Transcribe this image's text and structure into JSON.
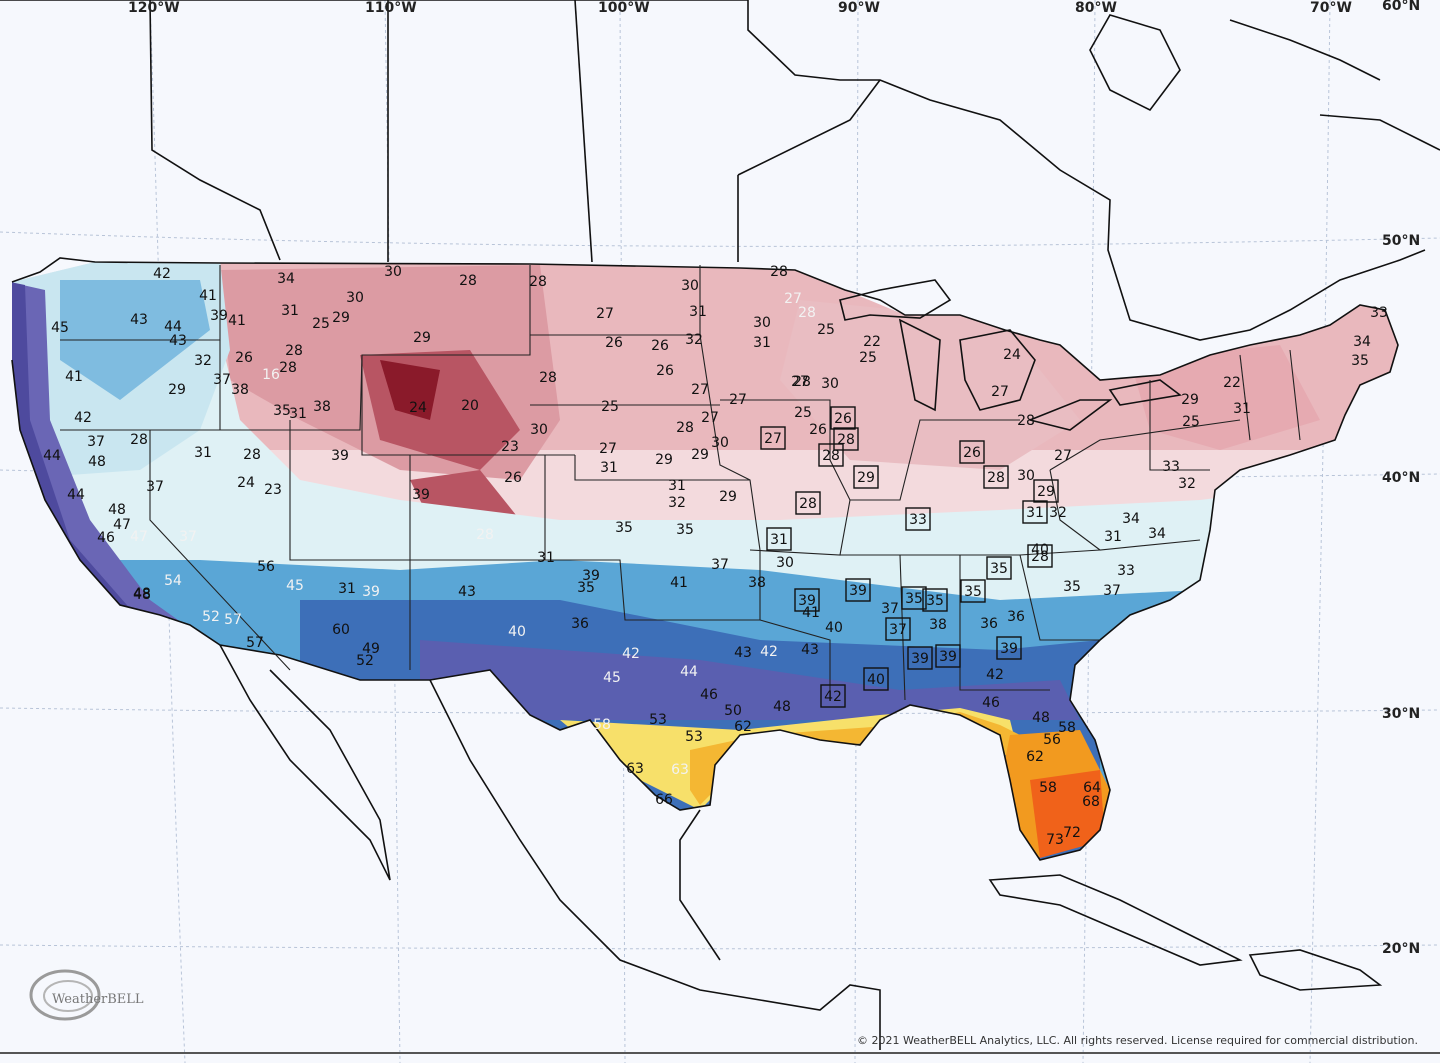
{
  "map": {
    "lon_labels": [
      "120°W",
      "110°W",
      "100°W",
      "90°W",
      "80°W",
      "70°W",
      "60°N"
    ],
    "lat_labels": [
      "50°N",
      "40°N",
      "30°N",
      "20°N"
    ],
    "copyright": "© 2021 WeatherBELL Analytics, LLC. All rights reserved. License required for commercial distribution.",
    "logo": "WeatherBELL",
    "colors": {
      "cold_deep": "#8a1a2a",
      "cold": "#d98a93",
      "cool": "#f2cfd2",
      "mild": "#dff1f5",
      "chill": "#5aa6d6",
      "warm_blue": "#3d6fb8",
      "purple": "#6a66b5",
      "yellow": "#f7e06a",
      "orange": "#f29a1f",
      "red_orange": "#f0621a"
    },
    "values": [
      {
        "v": "42"
      },
      {
        "v": "34"
      },
      {
        "v": "30"
      },
      {
        "v": "28"
      },
      {
        "v": "28"
      },
      {
        "v": "30"
      },
      {
        "v": "28"
      },
      {
        "v": "41"
      },
      {
        "v": "30"
      },
      {
        "v": "27"
      },
      {
        "v": "31"
      },
      {
        "v": "30"
      },
      {
        "v": "27"
      },
      {
        "v": "28"
      },
      {
        "v": "43"
      },
      {
        "v": "44"
      },
      {
        "v": "39"
      },
      {
        "v": "41"
      },
      {
        "v": "31"
      },
      {
        "v": "25"
      },
      {
        "v": "29"
      },
      {
        "v": "26"
      },
      {
        "v": "26"
      },
      {
        "v": "32"
      },
      {
        "v": "31"
      },
      {
        "v": "45"
      },
      {
        "v": "43"
      },
      {
        "v": "32"
      },
      {
        "v": "26"
      },
      {
        "v": "28"
      },
      {
        "v": "29"
      },
      {
        "v": "26"
      },
      {
        "v": "27"
      },
      {
        "v": "25"
      },
      {
        "v": "22"
      },
      {
        "v": "25"
      },
      {
        "v": "41"
      },
      {
        "v": "29"
      },
      {
        "v": "37"
      },
      {
        "v": "38"
      },
      {
        "v": "16"
      },
      {
        "v": "28"
      },
      {
        "v": "24"
      },
      {
        "v": "20"
      },
      {
        "v": "28"
      },
      {
        "v": "25"
      },
      {
        "v": "27"
      },
      {
        "v": "42"
      },
      {
        "v": "35"
      },
      {
        "v": "31"
      },
      {
        "v": "38"
      },
      {
        "v": "30"
      },
      {
        "v": "27"
      },
      {
        "v": "28"
      },
      {
        "v": "30"
      },
      {
        "v": "25"
      },
      {
        "v": "26"
      },
      {
        "v": "27"
      },
      {
        "v": "44"
      },
      {
        "v": "37"
      },
      {
        "v": "28"
      },
      {
        "v": "31"
      },
      {
        "v": "28"
      },
      {
        "v": "39"
      },
      {
        "v": "23"
      },
      {
        "v": "27"
      },
      {
        "v": "29"
      },
      {
        "v": "28"
      },
      {
        "v": "29"
      },
      {
        "v": "48"
      },
      {
        "v": "37"
      },
      {
        "v": "24"
      },
      {
        "v": "23"
      },
      {
        "v": "39"
      },
      {
        "v": "26"
      },
      {
        "v": "31"
      },
      {
        "v": "31"
      },
      {
        "v": "32"
      },
      {
        "v": "29"
      },
      {
        "v": "30"
      },
      {
        "v": "44"
      },
      {
        "v": "48"
      },
      {
        "v": "47"
      },
      {
        "v": "46"
      },
      {
        "v": "47"
      },
      {
        "v": "37"
      },
      {
        "v": "28"
      },
      {
        "v": "35"
      },
      {
        "v": "35"
      },
      {
        "v": "31"
      },
      {
        "v": "30"
      },
      {
        "v": "48"
      },
      {
        "v": "54"
      },
      {
        "v": "56"
      },
      {
        "v": "45"
      },
      {
        "v": "31"
      },
      {
        "v": "39"
      },
      {
        "v": "43"
      },
      {
        "v": "39"
      },
      {
        "v": "35"
      },
      {
        "v": "41"
      },
      {
        "v": "38"
      },
      {
        "v": "37"
      },
      {
        "v": "48"
      },
      {
        "v": "52"
      },
      {
        "v": "57"
      },
      {
        "v": "57"
      },
      {
        "v": "60"
      },
      {
        "v": "49"
      },
      {
        "v": "52"
      },
      {
        "v": "40"
      },
      {
        "v": "36"
      },
      {
        "v": "42"
      },
      {
        "v": "43"
      },
      {
        "v": "42"
      },
      {
        "v": "45"
      },
      {
        "v": "44"
      },
      {
        "v": "46"
      },
      {
        "v": "50"
      },
      {
        "v": "53"
      },
      {
        "v": "58"
      },
      {
        "v": "63"
      },
      {
        "v": "66"
      },
      {
        "v": "63"
      },
      {
        "v": "53"
      },
      {
        "v": "62"
      },
      {
        "v": "48"
      },
      {
        "v": "43"
      },
      {
        "v": "41"
      },
      {
        "v": "40"
      },
      {
        "v": "37"
      },
      {
        "v": "38"
      },
      {
        "v": "36"
      },
      {
        "v": "36"
      },
      {
        "v": "42"
      },
      {
        "v": "46"
      },
      {
        "v": "48"
      },
      {
        "v": "58"
      },
      {
        "v": "64"
      },
      {
        "v": "68"
      },
      {
        "v": "72"
      },
      {
        "v": "73"
      },
      {
        "v": "62"
      },
      {
        "v": "58"
      },
      {
        "v": "56"
      },
      {
        "v": "34"
      },
      {
        "v": "35"
      },
      {
        "v": "33"
      },
      {
        "v": "31"
      },
      {
        "v": "33"
      },
      {
        "v": "32"
      },
      {
        "v": "29"
      },
      {
        "v": "25"
      },
      {
        "v": "22"
      },
      {
        "v": "24"
      },
      {
        "v": "27"
      },
      {
        "v": "28"
      },
      {
        "v": "30"
      },
      {
        "v": "27"
      },
      {
        "v": "32"
      },
      {
        "v": "34"
      },
      {
        "v": "31"
      },
      {
        "v": "33"
      },
      {
        "v": "34"
      },
      {
        "v": "37"
      },
      {
        "v": "35"
      },
      {
        "v": "40"
      }
    ],
    "boxed": [
      "27",
      "26",
      "28",
      "28",
      "29",
      "28",
      "31",
      "39",
      "39",
      "33",
      "26",
      "28",
      "29",
      "31",
      "28",
      "35",
      "39",
      "35",
      "35",
      "37",
      "39",
      "39",
      "40",
      "42",
      "35"
    ]
  }
}
